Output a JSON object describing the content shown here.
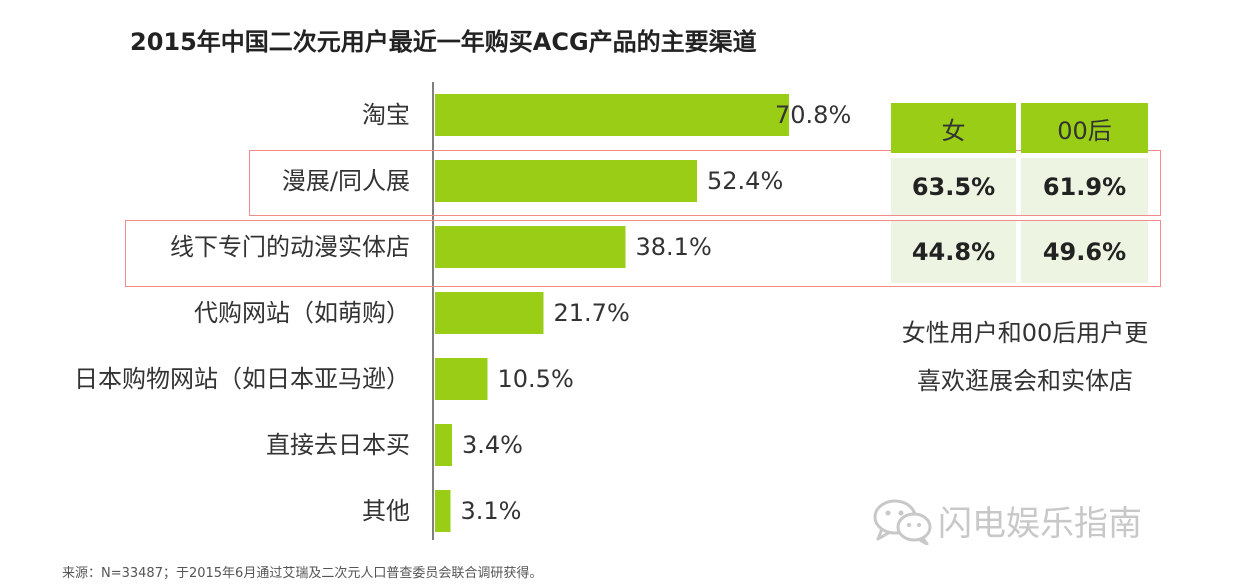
{
  "title": "2015年中国二次元用户最近一年购买ACG产品的主要渠道",
  "chart_data": {
    "type": "bar",
    "orientation": "horizontal",
    "title": "2015年中国二次元用户最近一年购买ACG产品的主要渠道",
    "categories": [
      "淘宝",
      "漫展/同人展",
      "线下专门的动漫实体店",
      "代购网站（如萌购）",
      "日本购物网站（如日本亚马逊）",
      "直接去日本买",
      "其他"
    ],
    "values": [
      70.8,
      52.4,
      38.1,
      21.7,
      10.5,
      3.4,
      3.1
    ],
    "value_labels": [
      "70.8%",
      "52.4%",
      "38.1%",
      "21.7%",
      "10.5%",
      "3.4%",
      "3.1%"
    ],
    "bar_color": "#9acd16",
    "xlim": [
      0,
      100
    ]
  },
  "side_table": {
    "headers": [
      "女",
      "00后"
    ],
    "rows": [
      [
        "63.5%",
        "61.9%"
      ],
      [
        "44.8%",
        "49.6%"
      ]
    ],
    "header_color": "#9acd16",
    "cell_color": "#eef4e2"
  },
  "note": {
    "line1": "女性用户和00后用户更",
    "line2": "喜欢逛展会和实体店"
  },
  "source": "来源：N=33487；于2015年6月通过艾瑞及二次元人口普查委员会联合调研获得。",
  "watermark": {
    "icon": "wechat-icon",
    "text": "闪电娱乐指南"
  },
  "colors": {
    "highlight_border": "#f08c8c",
    "axis": "#555555"
  }
}
